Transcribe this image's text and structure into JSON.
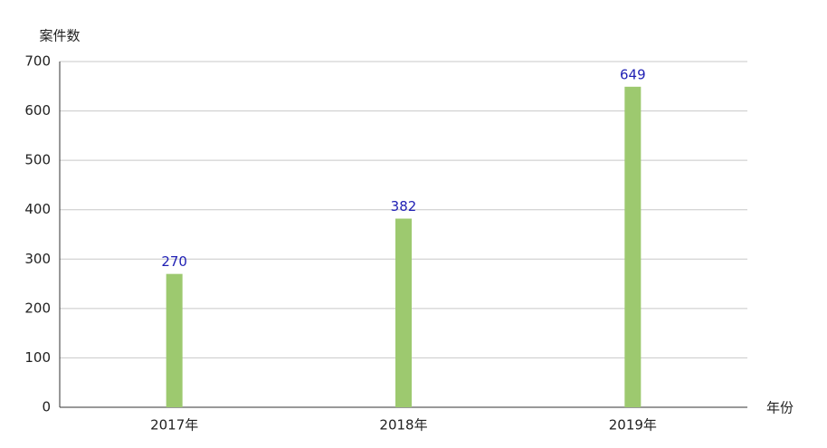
{
  "chart_data": {
    "type": "bar",
    "y_label": "案件数",
    "x_label": "年份",
    "categories": [
      "2017年",
      "2018年",
      "2019年"
    ],
    "values": [
      270,
      382,
      649
    ],
    "color": "#9dc96f",
    "label_color": "#1f1fb4",
    "ylim": [
      0,
      700
    ],
    "yticks": [
      0,
      100,
      200,
      300,
      400,
      500,
      600,
      700
    ],
    "grid": true
  }
}
